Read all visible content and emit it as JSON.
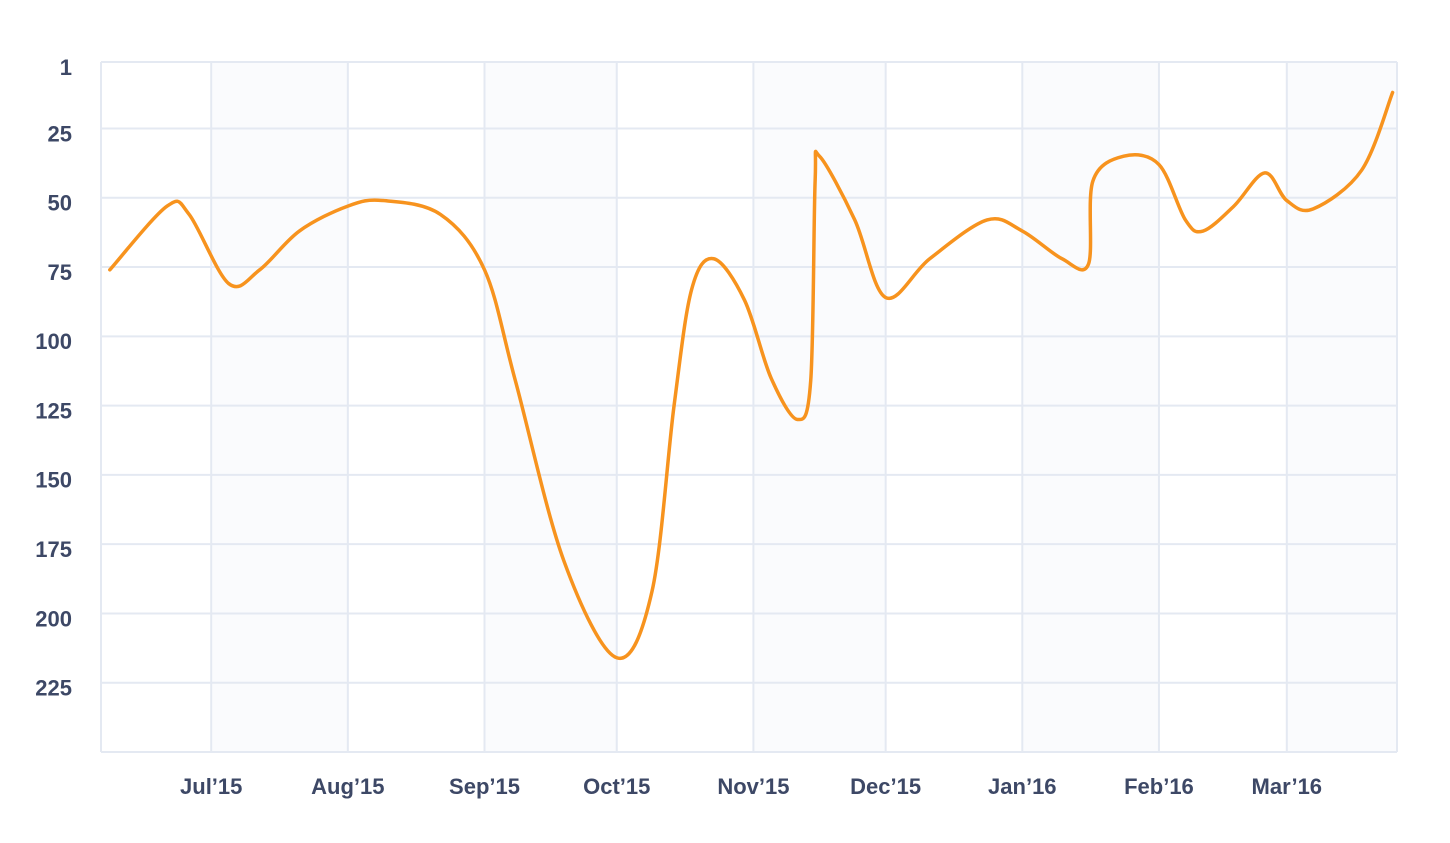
{
  "chart_data": {
    "type": "line",
    "x": [
      "2015-06-08",
      "2015-06-21",
      "2015-06-26",
      "2015-07-05",
      "2015-07-12",
      "2015-07-21",
      "2015-08-01",
      "2015-08-09",
      "2015-08-22",
      "2015-09-01",
      "2015-09-08",
      "2015-09-19",
      "2015-10-01",
      "2015-10-09",
      "2015-10-14",
      "2015-10-18",
      "2015-10-23",
      "2015-10-30",
      "2015-11-05",
      "2015-11-11",
      "2015-11-14",
      "2015-11-15",
      "2015-11-16",
      "2015-11-24",
      "2015-12-01",
      "2015-12-11",
      "2015-12-24",
      "2016-01-01",
      "2016-01-10",
      "2016-01-16",
      "2016-01-17",
      "2016-01-24",
      "2016-02-01",
      "2016-02-07",
      "2016-02-11",
      "2016-02-18",
      "2016-02-25",
      "2016-03-01",
      "2016-03-07",
      "2016-03-18",
      "2016-03-25"
    ],
    "series": [
      {
        "color": "#f7931e",
        "values": [
          76,
          53,
          56,
          81,
          76,
          62,
          53,
          51,
          56,
          76,
          116,
          181,
          216,
          192,
          125,
          83,
          72,
          87,
          115,
          130,
          116,
          44,
          35,
          58,
          86,
          72,
          58,
          62,
          72,
          74,
          44,
          35,
          38,
          58,
          62,
          53,
          41,
          51,
          54,
          40,
          12
        ]
      }
    ],
    "xlim": [
      "2015-06-06",
      "2016-03-26"
    ],
    "xticks": [
      {
        "value": "2015-07-01",
        "label": "Jul’15"
      },
      {
        "value": "2015-08-01",
        "label": "Aug’15"
      },
      {
        "value": "2015-09-01",
        "label": "Sep’15"
      },
      {
        "value": "2015-10-01",
        "label": "Oct’15"
      },
      {
        "value": "2015-11-01",
        "label": "Nov’15"
      },
      {
        "value": "2015-12-01",
        "label": "Dec’15"
      },
      {
        "value": "2016-01-01",
        "label": "Jan’16"
      },
      {
        "value": "2016-02-01",
        "label": "Feb’16"
      },
      {
        "value": "2016-03-01",
        "label": "Mar’16"
      }
    ],
    "ylim": [
      250,
      1
    ],
    "yticks": [
      1,
      25,
      50,
      75,
      100,
      125,
      150,
      175,
      200,
      225
    ],
    "grid": true
  }
}
